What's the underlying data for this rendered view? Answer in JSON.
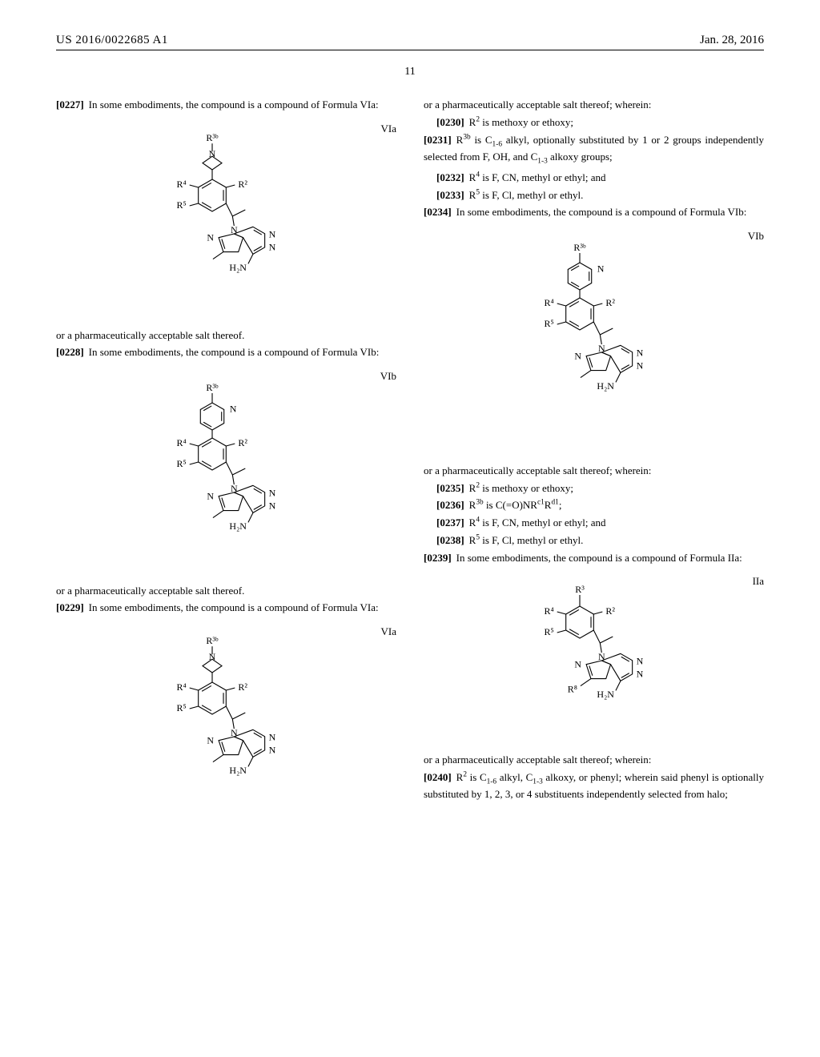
{
  "header": {
    "pub_number": "US 2016/0022685 A1",
    "pub_date": "Jan. 28, 2016"
  },
  "page_number": "11",
  "left": {
    "p0227": {
      "num": "[0227]",
      "text": "In some embodiments, the compound is a compound of Formula VIa:"
    },
    "fig_VIa_label": "VIa",
    "salt_line": "or a pharmaceutically acceptable salt thereof.",
    "p0228": {
      "num": "[0228]",
      "text": "In some embodiments, the compound is a compound of Formula VIb:"
    },
    "fig_VIb_label": "VIb",
    "p0229": {
      "num": "[0229]",
      "text": "In some embodiments, the compound is a compound of Formula VIa:"
    },
    "fig_VIa2_label": "VIa"
  },
  "right": {
    "salt_wherein": "or a pharmaceutically acceptable salt thereof; wherein:",
    "p0230": {
      "num": "[0230]",
      "html": "R<sup>2</sup> is methoxy or ethoxy;"
    },
    "p0231": {
      "num": "[0231]",
      "html": "R<sup>3b</sup> is C<sub>1-6</sub> alkyl, optionally substituted by 1 or 2 groups independently selected from F, OH, and C<sub>1-3</sub> alkoxy groups;"
    },
    "p0232": {
      "num": "[0232]",
      "html": "R<sup>4</sup> is F, CN, methyl or ethyl; and"
    },
    "p0233": {
      "num": "[0233]",
      "html": "R<sup>5</sup> is F, Cl, methyl or ethyl."
    },
    "p0234": {
      "num": "[0234]",
      "text": "In some embodiments, the compound is a compound of Formula VIb:"
    },
    "fig_VIb_label": "VIb",
    "p0235": {
      "num": "[0235]",
      "html": "R<sup>2</sup> is methoxy or ethoxy;"
    },
    "p0236": {
      "num": "[0236]",
      "html": "R<sup>3b</sup> is C(=O)NR<sup>c1</sup>R<sup>d1</sup>;"
    },
    "p0237": {
      "num": "[0237]",
      "html": "R<sup>4</sup> is F, CN, methyl or ethyl; and"
    },
    "p0238": {
      "num": "[0238]",
      "html": "R<sup>5</sup> is F, Cl, methyl or ethyl."
    },
    "p0239": {
      "num": "[0239]",
      "text": "In some embodiments, the compound is a compound of Formula IIa:"
    },
    "fig_IIa_label": "IIa",
    "p0240": {
      "num": "[0240]",
      "html": "R<sup>2</sup> is C<sub>1-6</sub> alkyl, C<sub>1-3</sub> alkoxy, or phenyl; wherein said phenyl is optionally substituted by 1, 2, 3, or 4 substituents independently selected from halo;"
    }
  },
  "chem": {
    "labels": {
      "R2": "R²",
      "R3": "R³",
      "R3b": "R³ᵇ",
      "R4": "R⁴",
      "R5": "R⁵",
      "R8": "R⁸",
      "H2N": "H₂N",
      "N": "N"
    },
    "stroke": "#000000",
    "stroke_width": 1.1,
    "font_family": "Times New Roman",
    "font_size": 12
  }
}
